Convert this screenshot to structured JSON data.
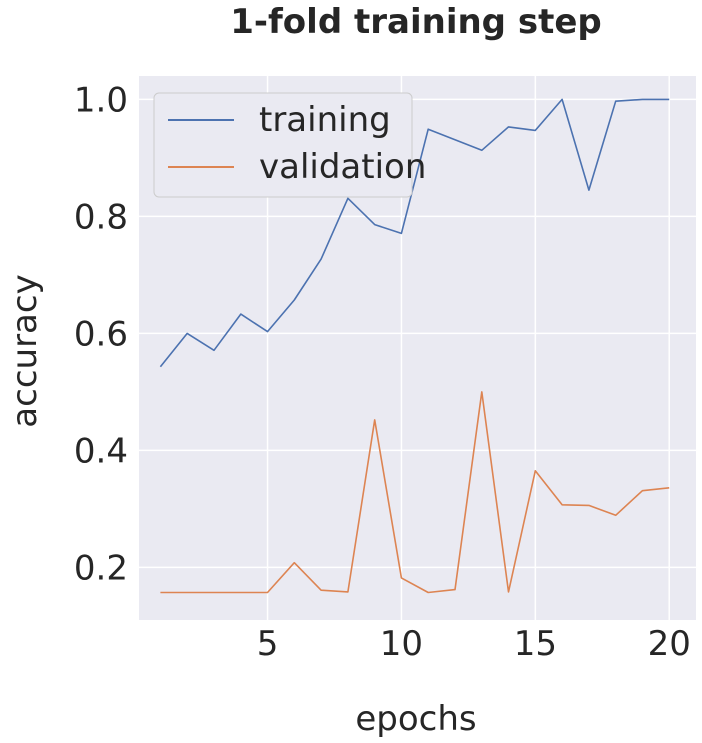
{
  "chart_data": {
    "type": "line",
    "title": "1-fold training step",
    "xlabel": "epochs",
    "ylabel": "accuracy",
    "xlim": [
      0.2,
      21.0
    ],
    "ylim": [
      0.11,
      1.04
    ],
    "xticks": [
      5,
      10,
      15,
      20
    ],
    "yticks": [
      0.2,
      0.4,
      0.6,
      0.8,
      1.0
    ],
    "xtick_labels": [
      "5",
      "10",
      "15",
      "20"
    ],
    "ytick_labels": [
      "0.2",
      "0.4",
      "0.6",
      "0.8",
      "1.0"
    ],
    "grid": true,
    "legend_position": "top-left",
    "x": [
      1,
      2,
      3,
      4,
      5,
      6,
      7,
      8,
      9,
      10,
      11,
      12,
      13,
      14,
      15,
      16,
      17,
      18,
      19,
      20
    ],
    "series": [
      {
        "name": "training",
        "color": "#4c72b0",
        "values": [
          0.543,
          0.6,
          0.571,
          0.633,
          0.603,
          0.657,
          0.727,
          0.831,
          0.786,
          0.771,
          0.949,
          0.931,
          0.913,
          0.953,
          0.947,
          1.0,
          0.845,
          0.997,
          1.0,
          1.0
        ]
      },
      {
        "name": "validation",
        "color": "#dd8452",
        "values": [
          0.157,
          0.157,
          0.157,
          0.157,
          0.157,
          0.208,
          0.161,
          0.158,
          0.452,
          0.182,
          0.157,
          0.162,
          0.5,
          0.158,
          0.365,
          0.307,
          0.306,
          0.289,
          0.331,
          0.336
        ]
      }
    ]
  }
}
